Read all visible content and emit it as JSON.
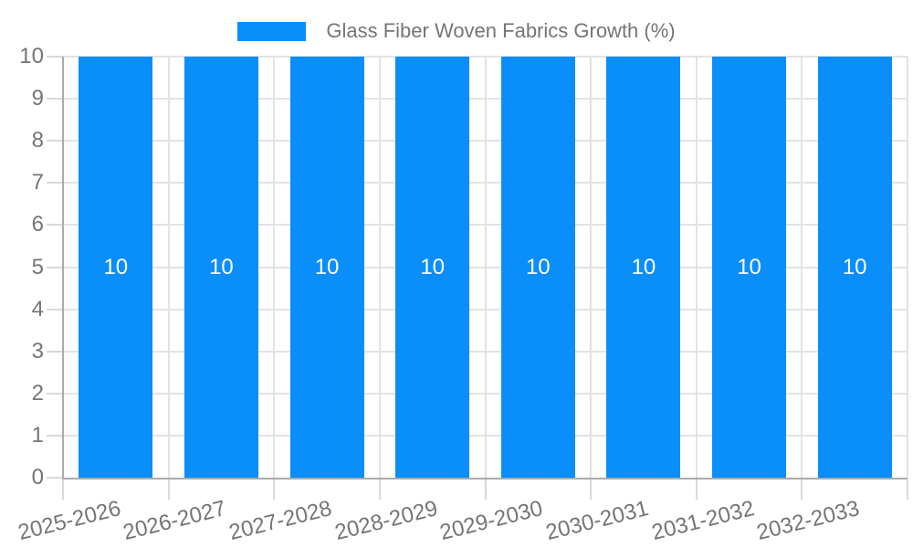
{
  "legend": {
    "label": "Glass Fiber Woven Fabrics Growth (%)"
  },
  "chart_data": {
    "type": "bar",
    "title": "Glass Fiber Woven Fabrics Growth (%)",
    "categories": [
      "2025-2026",
      "2026-2027",
      "2027-2028",
      "2028-2029",
      "2029-2030",
      "2030-2031",
      "2031-2032",
      "2032-2033"
    ],
    "series": [
      {
        "name": "Glass Fiber Woven Fabrics Growth (%)",
        "values": [
          10,
          10,
          10,
          10,
          10,
          10,
          10,
          10
        ]
      }
    ],
    "values": [
      10,
      10,
      10,
      10,
      10,
      10,
      10,
      10
    ],
    "bar_value_labels": [
      "10",
      "10",
      "10",
      "10",
      "10",
      "10",
      "10",
      "10"
    ],
    "xlabel": "",
    "ylabel": "",
    "ylim": [
      0,
      10
    ],
    "y_ticks": [
      0,
      1,
      2,
      3,
      4,
      5,
      6,
      7,
      8,
      9,
      10
    ],
    "grid": true,
    "legend_position": "top",
    "colors": {
      "bar": "#0a8ef9",
      "axis_label": "#757575",
      "grid_line": "#e3e3e3",
      "tick_line": "#d9d9d9",
      "axis_line": "#ababab",
      "value_label": "#ffffff",
      "background": "#ffffff"
    }
  }
}
